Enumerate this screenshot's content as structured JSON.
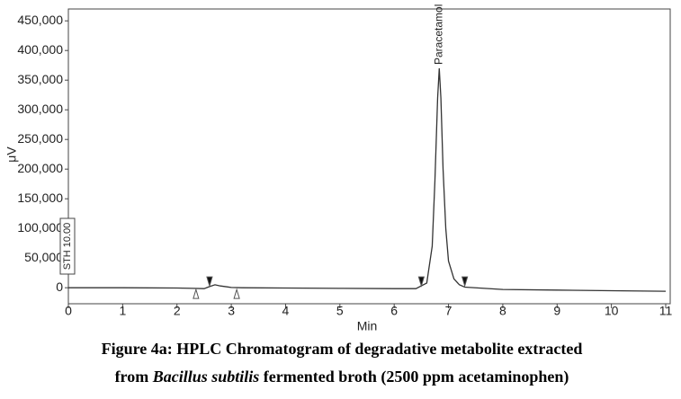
{
  "chart_data": {
    "type": "line",
    "x_label": "Min",
    "y_label": "μV",
    "xlim": [
      0,
      11
    ],
    "xticks": [
      0,
      1,
      2,
      3,
      4,
      5,
      6,
      7,
      8,
      9,
      10,
      11
    ],
    "ylim": [
      -27000,
      470000
    ],
    "yticks": [
      0,
      {
        "value": 50000,
        "label": "50,000"
      },
      {
        "value": 100000,
        "label": "100,000"
      },
      {
        "value": 150000,
        "label": "150,000"
      },
      {
        "value": 200000,
        "label": "200,000"
      },
      {
        "value": 250000,
        "label": "250,000"
      },
      {
        "value": 300000,
        "label": "300,000"
      },
      {
        "value": 350000,
        "label": "350,000"
      },
      {
        "value": 400000,
        "label": "400,000"
      },
      {
        "value": 450000,
        "label": "450,000"
      }
    ],
    "series": [
      {
        "color": "#333333",
        "x": [
          0,
          1,
          2,
          2.3,
          2.5,
          2.6,
          2.7,
          2.8,
          3.0,
          3.2,
          4,
          5,
          6,
          6.4,
          6.6,
          6.7,
          6.75,
          6.8,
          6.83,
          6.86,
          6.9,
          6.95,
          7.0,
          7.1,
          7.2,
          7.3,
          8,
          9,
          10,
          11
        ],
        "values": [
          0,
          0,
          -500,
          -1000,
          -1500,
          2000,
          5000,
          3000,
          500,
          0,
          -500,
          -1000,
          -1500,
          -1500,
          8000,
          70000,
          180000,
          320000,
          370000,
          320000,
          200000,
          100000,
          45000,
          15000,
          5000,
          1000,
          -3000,
          -4000,
          -5000,
          -6000
        ]
      }
    ],
    "events": [
      2.35,
      2.6,
      3.1,
      6.5,
      7.3
    ],
    "peak_label": {
      "text": "Paracetamol",
      "x": 6.83
    },
    "sth_label": "STH 10.00",
    "caption": {
      "line1": "Figure 4a: HPLC Chromatogram of degradative metabolite extracted",
      "line2_start": "from",
      "line2_italic": "Bacillus subtilis",
      "line2_end": "fermented broth (2500 ppm acetaminophen)"
    }
  }
}
